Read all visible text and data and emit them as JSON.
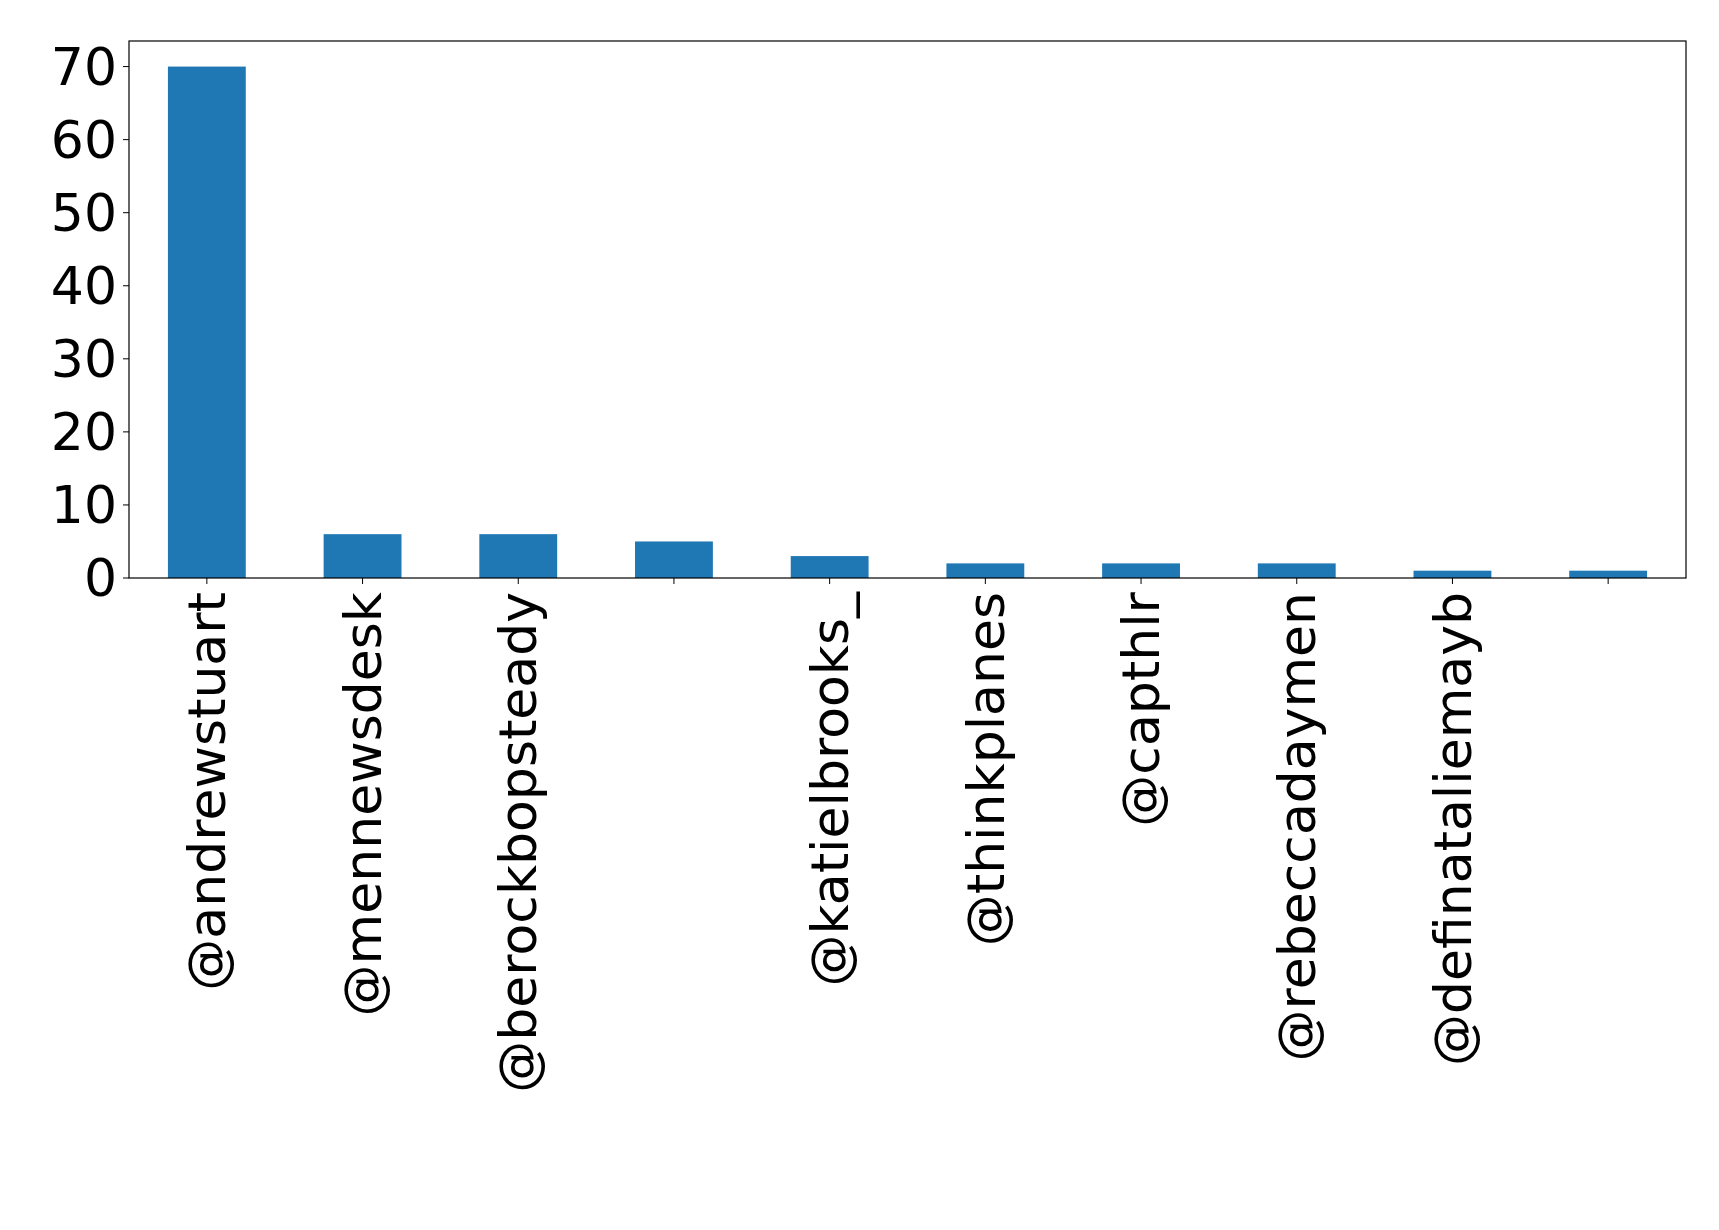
{
  "chart_data": {
    "type": "bar",
    "categories": [
      "@andrewstuart",
      "@mennewsdesk",
      "@berockbopsteady",
      null,
      "@katielbrooks_",
      "@thinkplanes",
      "@capthlr",
      "@rebeccadaymen",
      "@definataliemayb",
      null
    ],
    "values": [
      70,
      6,
      6,
      5,
      3,
      2,
      2,
      2,
      1,
      1
    ],
    "color": "#1f77b4",
    "ylim": [
      0,
      73.5
    ],
    "yticks": [
      0,
      10,
      20,
      30,
      40,
      50,
      60,
      70
    ],
    "grid": false
  }
}
